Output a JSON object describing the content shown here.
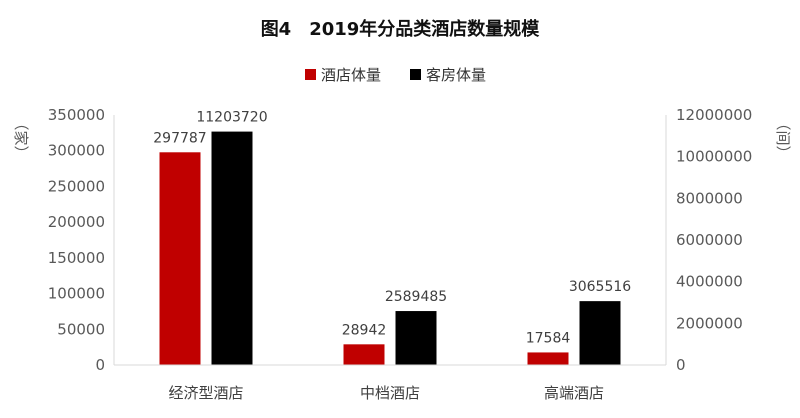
{
  "chart_data": {
    "type": "bar",
    "title": "图4　2019年分品类酒店数量规模",
    "categories": [
      "经济型酒店",
      "中档酒店",
      "高端酒店"
    ],
    "series": [
      {
        "name": "酒店体量",
        "axis": "left",
        "color": "#C00000",
        "values": [
          297787,
          28942,
          17584
        ],
        "labels": [
          "297787",
          "28942",
          "17584"
        ]
      },
      {
        "name": "客房体量",
        "axis": "right",
        "color": "#000000",
        "values": [
          11203720,
          2589485,
          3065516
        ],
        "labels": [
          "11203720",
          "2589485",
          "3065516"
        ]
      }
    ],
    "y_left": {
      "label": "（家）",
      "ylim": [
        0,
        350000
      ],
      "ticks": [
        "0",
        "50000",
        "100000",
        "150000",
        "200000",
        "250000",
        "300000",
        "350000"
      ]
    },
    "y_right": {
      "label": "（间）",
      "ylim": [
        0,
        12000000
      ],
      "ticks": [
        "0",
        "2000000",
        "4000000",
        "6000000",
        "8000000",
        "10000000",
        "12000000"
      ]
    },
    "grid": false,
    "legend": "top-center"
  }
}
